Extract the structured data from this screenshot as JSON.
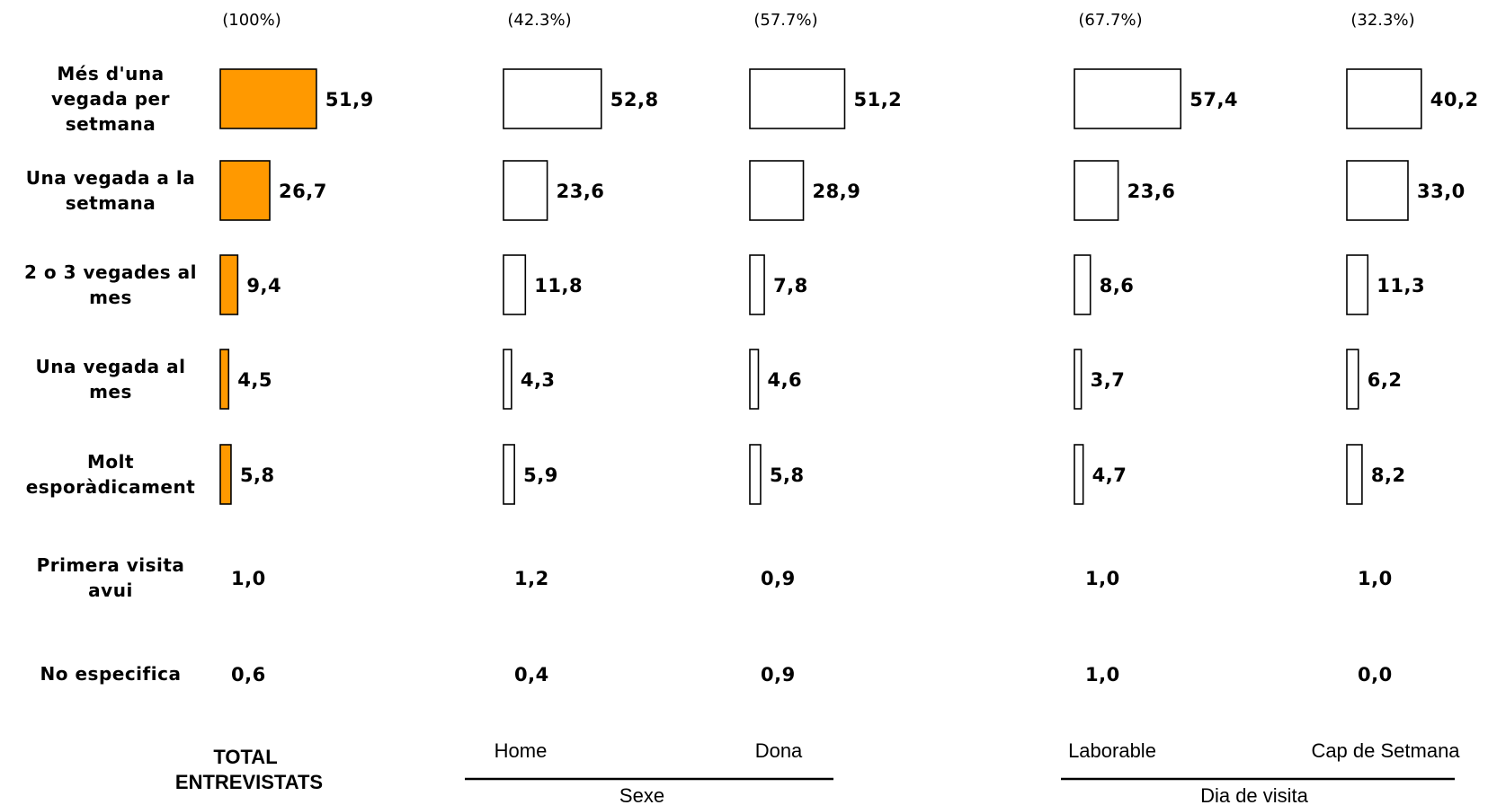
{
  "chart_data": {
    "type": "bar",
    "orientation": "horizontal",
    "categories": [
      [
        "Més d'una",
        "vegada per",
        "setmana"
      ],
      [
        "Una vegada a la",
        "setmana"
      ],
      [
        "2 o 3 vegades al",
        "mes"
      ],
      [
        "Una vegada al",
        "mes"
      ],
      [
        "Molt",
        "esporàdicament"
      ],
      [
        "Primera visita",
        "avui"
      ],
      [
        "No especifica"
      ]
    ],
    "bars_shown_for_first": 5,
    "total": {
      "label": [
        "TOTAL",
        "ENTREVISTATS"
      ],
      "share": "(100%)",
      "values": [
        51.9,
        26.7,
        9.4,
        4.5,
        5.8,
        1.0,
        0.6
      ],
      "labels": [
        "51,9",
        "26,7",
        "9,4",
        "4,5",
        "5,8",
        "1,0",
        "0,6"
      ],
      "color": "#ff9900"
    },
    "groups": [
      {
        "label": "Sexe",
        "series": [
          {
            "name": "Home",
            "share": "(42.3%)",
            "values": [
              52.8,
              23.6,
              11.8,
              4.3,
              5.9,
              1.2,
              0.4
            ],
            "labels": [
              "52,8",
              "23,6",
              "11,8",
              "4,3",
              "5,9",
              "1,2",
              "0,4"
            ]
          },
          {
            "name": "Dona",
            "share": "(57.7%)",
            "values": [
              51.2,
              28.9,
              7.8,
              4.6,
              5.8,
              0.9,
              0.9
            ],
            "labels": [
              "51,2",
              "28,9",
              "7,8",
              "4,6",
              "5,8",
              "0,9",
              "0,9"
            ]
          }
        ]
      },
      {
        "label": "Dia de visita",
        "series": [
          {
            "name": "Laborable",
            "share": "(67.7%)",
            "values": [
              57.4,
              23.6,
              8.6,
              3.7,
              4.7,
              1.0,
              1.0
            ],
            "labels": [
              "57,4",
              "23,6",
              "8,6",
              "3,7",
              "4,7",
              "1,0",
              "1,0"
            ]
          },
          {
            "name": "Cap de Setmana",
            "share": "(32.3%)",
            "values": [
              40.2,
              33.0,
              11.3,
              6.2,
              8.2,
              1.0,
              0.0
            ],
            "labels": [
              "40,2",
              "33,0",
              "11,3",
              "6,2",
              "8,2",
              "1,0",
              "0,0"
            ]
          }
        ]
      }
    ],
    "series_fill": "#ffffff",
    "bar_stroke": "#000000"
  }
}
